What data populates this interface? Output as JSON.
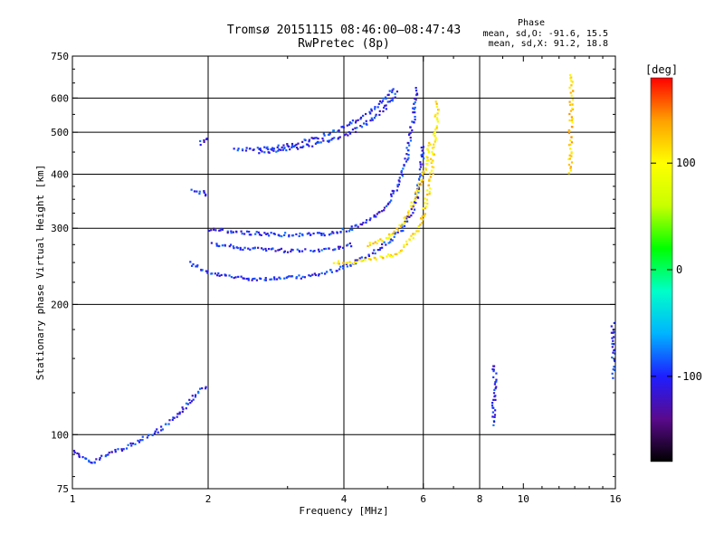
{
  "header": {
    "title_line1": "Tromsø 20151115 08:46:00–08:47:43",
    "title_line2": "RwPretec (8p)"
  },
  "phase_stats": {
    "heading": "Phase",
    "line_o": "mean, sd,O: -91.6, 15.5",
    "line_x": "mean, sd,X:  91.2, 18.8"
  },
  "colorbar": {
    "unit_label": "[deg]",
    "range": [
      -180,
      180
    ],
    "ticks": [
      100,
      0,
      -100
    ],
    "colors": [
      "#000000",
      "#5a0a8c",
      "#1e1eff",
      "#00b4ff",
      "#00ffc8",
      "#00ff00",
      "#c8ff00",
      "#ffff00",
      "#ffa000",
      "#ff0000"
    ]
  },
  "chart_data": {
    "type": "scatter",
    "title": "Tromsø 20151115 08:46:00–08:47:43",
    "subtitle": "RwPretec (8p)",
    "xlabel": "Frequency [MHz]",
    "ylabel": "Stationary phase Virtual Height [km]",
    "x_scale": "log",
    "y_scale": "log",
    "xlim": [
      1,
      16
    ],
    "ylim": [
      75,
      750
    ],
    "x_ticks": [
      1,
      2,
      4,
      6,
      8,
      10,
      16
    ],
    "y_ticks": [
      75,
      100,
      200,
      300,
      400,
      500,
      600,
      750
    ],
    "x_grid": [
      2,
      4,
      6,
      8
    ],
    "y_grid": [
      100,
      200,
      300,
      400,
      500,
      600
    ],
    "grid": true,
    "color_encoding": "phase [deg]",
    "series": [
      {
        "traces": [
          {
            "phase": -100,
            "points": [
              [
                1.82,
                250
              ],
              [
                2,
                236
              ],
              [
                2.3,
                231
              ],
              [
                2.6,
                229
              ],
              [
                3,
                230
              ],
              [
                3.5,
                234
              ],
              [
                4,
                244
              ],
              [
                4.5,
                258
              ],
              [
                5,
                278
              ],
              [
                5.4,
                300
              ],
              [
                5.7,
                330
              ],
              [
                5.85,
                370
              ],
              [
                5.95,
                420
              ],
              [
                6.0,
                470
              ]
            ]
          },
          {
            "phase": -100,
            "points": [
              [
                2,
                298
              ],
              [
                2.5,
                292
              ],
              [
                3,
                290
              ],
              [
                3.4,
                290
              ],
              [
                3.8,
                292
              ],
              [
                4.2,
                300
              ],
              [
                4.6,
                315
              ],
              [
                5,
                340
              ],
              [
                5.3,
                380
              ],
              [
                5.5,
                430
              ],
              [
                5.6,
                480
              ],
              [
                5.7,
                540
              ],
              [
                5.75,
                600
              ],
              [
                5.8,
                640
              ]
            ]
          },
          {
            "phase": -100,
            "points": [
              [
                2.05,
                275
              ],
              [
                2.4,
                270
              ],
              [
                2.8,
                268
              ],
              [
                3,
                266
              ],
              [
                3.3,
                268
              ]
            ]
          },
          {
            "phase": -100,
            "points": [
              [
                3.4,
                266
              ],
              [
                3.8,
                270
              ],
              [
                4.2,
                275
              ]
            ]
          },
          {
            "phase": -100,
            "points": [
              [
                2.3,
                455
              ],
              [
                2.7,
                458
              ],
              [
                3.1,
                468
              ],
              [
                3.6,
                490
              ],
              [
                4.1,
                520
              ],
              [
                4.6,
                560
              ],
              [
                5,
                610
              ],
              [
                5.2,
                640
              ]
            ]
          },
          {
            "phase": -100,
            "points": [
              [
                2.6,
                450
              ],
              [
                3.2,
                462
              ],
              [
                3.8,
                480
              ],
              [
                4.3,
                510
              ],
              [
                4.7,
                545
              ],
              [
                5,
                580
              ],
              [
                5.3,
                620
              ]
            ]
          },
          {
            "phase": -100,
            "points": [
              [
                1.92,
                470
              ],
              [
                1.96,
                478
              ],
              [
                2,
                482
              ]
            ]
          },
          {
            "phase": -100,
            "points": [
              [
                1.84,
                370
              ],
              [
                1.9,
                365
              ],
              [
                1.96,
                362
              ],
              [
                2,
                358
              ]
            ]
          },
          {
            "phase": -100,
            "points": [
              [
                1,
                92
              ],
              [
                1.05,
                88
              ],
              [
                1.1,
                86
              ],
              [
                1.2,
                90
              ],
              [
                1.35,
                95
              ],
              [
                1.5,
                100
              ],
              [
                1.6,
                105
              ],
              [
                1.7,
                110
              ],
              [
                1.8,
                118
              ],
              [
                1.9,
                125
              ],
              [
                2,
                130
              ]
            ]
          },
          {
            "phase": 110,
            "points": [
              [
                3.8,
                250
              ],
              [
                4.1,
                250
              ],
              [
                4.4,
                252
              ],
              [
                4.8,
                256
              ],
              [
                5.2,
                262
              ],
              [
                5.5,
                275
              ],
              [
                5.8,
                295
              ],
              [
                6,
                320
              ],
              [
                6.15,
                360
              ],
              [
                6.25,
                400
              ],
              [
                6.3,
                450
              ],
              [
                6.4,
                520
              ],
              [
                6.45,
                590
              ]
            ]
          },
          {
            "phase": 110,
            "points": [
              [
                4.5,
                275
              ],
              [
                4.9,
                282
              ],
              [
                5.3,
                300
              ],
              [
                5.6,
                330
              ],
              [
                5.9,
                380
              ],
              [
                6.1,
                430
              ],
              [
                6.2,
                480
              ]
            ]
          },
          {
            "phase": -100,
            "points": [
              [
                8.6,
                145
              ],
              [
                8.65,
                135
              ],
              [
                8.6,
                120
              ],
              [
                8.55,
                105
              ]
            ]
          },
          {
            "phase": -100,
            "points": [
              [
                15.8,
                180
              ],
              [
                15.8,
                160
              ],
              [
                15.9,
                145
              ],
              [
                15.85,
                135
              ]
            ]
          },
          {
            "phase": 120,
            "points": [
              [
                12.8,
                680
              ],
              [
                12.7,
                480
              ],
              [
                12.7,
                400
              ]
            ]
          }
        ]
      }
    ]
  }
}
